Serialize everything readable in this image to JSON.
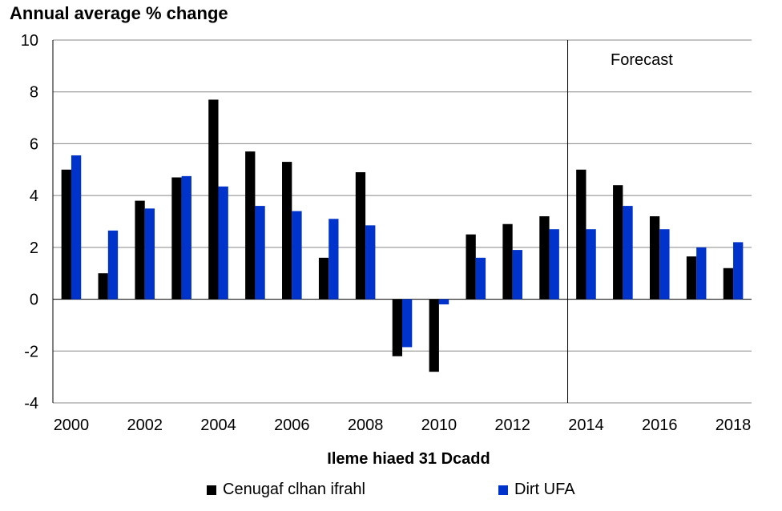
{
  "chart_data": {
    "type": "bar",
    "ylabel": "Annual average % change",
    "xlabel": "Ileme hiaed 31 Dcadd",
    "ylim": [
      -4,
      10
    ],
    "yticks": [
      -4,
      -2,
      0,
      2,
      4,
      6,
      8,
      10
    ],
    "categories": [
      "2000",
      "2001",
      "2002",
      "2003",
      "2004",
      "2005",
      "2006",
      "2007",
      "2008",
      "2009",
      "2010",
      "2011",
      "2012",
      "2013",
      "2014",
      "2015",
      "2016",
      "2017",
      "2018"
    ],
    "xtick_labels": [
      "2000",
      "2002",
      "2004",
      "2006",
      "2008",
      "2010",
      "2012",
      "2014",
      "2016",
      "2018"
    ],
    "series": [
      {
        "name": "Cenugaf clhan ifrahl",
        "color": "#000000",
        "values": [
          5.0,
          1.0,
          3.8,
          4.7,
          7.7,
          5.7,
          5.3,
          1.6,
          4.9,
          -2.2,
          -2.8,
          2.5,
          2.9,
          3.2,
          5.0,
          4.4,
          3.2,
          1.65,
          1.2
        ]
      },
      {
        "name": "Dirt UFA",
        "color": "#0033cc",
        "values": [
          5.55,
          2.65,
          3.5,
          4.75,
          4.35,
          3.6,
          3.4,
          3.1,
          2.85,
          -1.85,
          -0.2,
          1.6,
          1.9,
          2.7,
          2.7,
          3.6,
          2.7,
          2.0,
          2.2
        ]
      }
    ],
    "annotation": "Forecast",
    "forecast_start_category": "2014",
    "grid": true,
    "legend_position": "bottom"
  }
}
